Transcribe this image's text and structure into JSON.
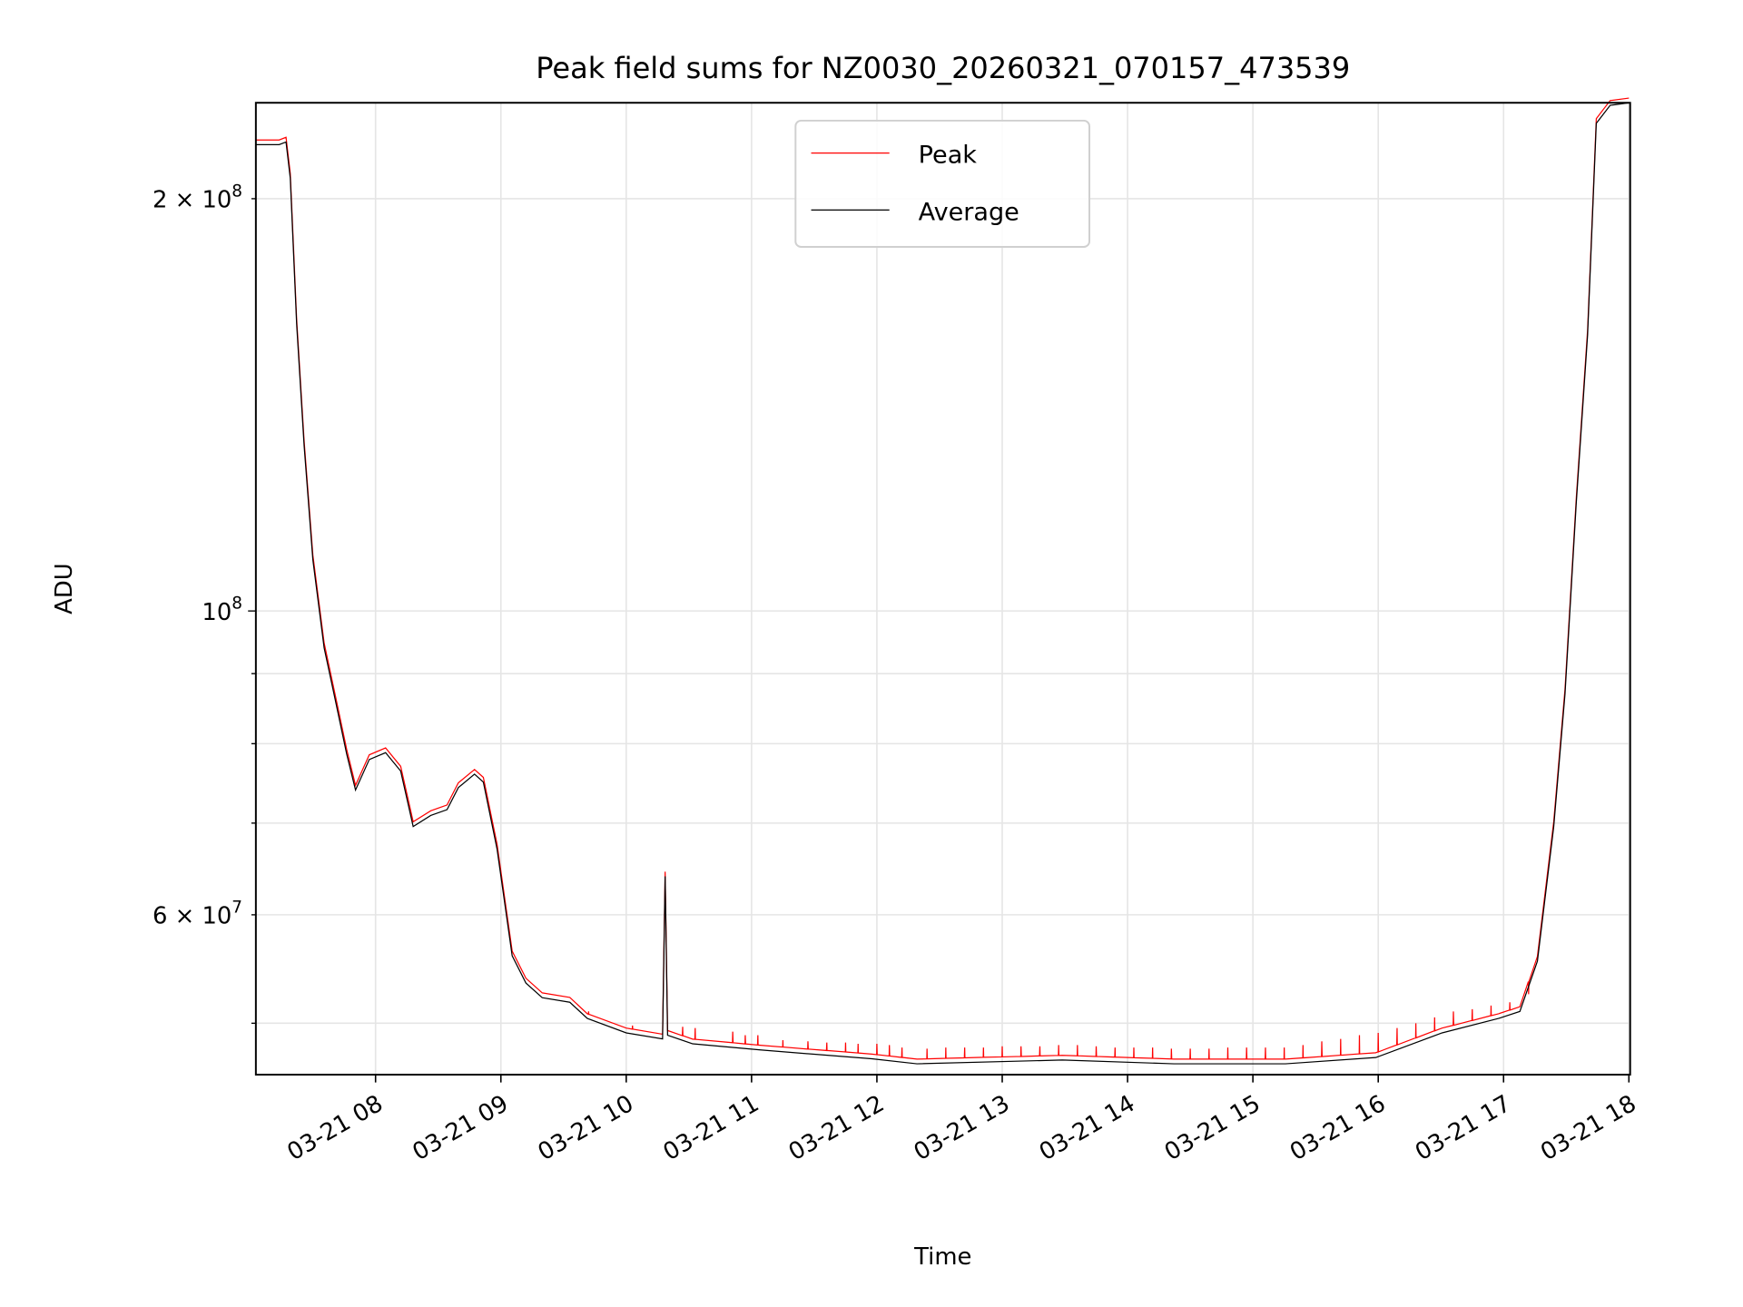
{
  "chart_data": {
    "type": "line",
    "title": "Peak field sums for NZ0030_20260321_070157_473539",
    "xlabel": "Time",
    "ylabel": "ADU",
    "yscale": "log",
    "ylim": [
      45860000,
      235000000
    ],
    "xlim_hours": [
      7.045,
      18.01
    ],
    "x_ticks": [
      {
        "hour": 8,
        "label": "03-21 08"
      },
      {
        "hour": 9,
        "label": "03-21 09"
      },
      {
        "hour": 10,
        "label": "03-21 10"
      },
      {
        "hour": 11,
        "label": "03-21 11"
      },
      {
        "hour": 12,
        "label": "03-21 12"
      },
      {
        "hour": 13,
        "label": "03-21 13"
      },
      {
        "hour": 14,
        "label": "03-21 14"
      },
      {
        "hour": 15,
        "label": "03-21 15"
      },
      {
        "hour": 16,
        "label": "03-21 16"
      },
      {
        "hour": 17,
        "label": "03-21 17"
      },
      {
        "hour": 18,
        "label": "03-21 18"
      }
    ],
    "y_major_ticks": [
      {
        "value": 100000000,
        "base": "10",
        "exp": "8"
      }
    ],
    "y_minor_ticks": [
      {
        "value": 200000000,
        "base": "2 × 10",
        "exp": "8"
      },
      {
        "value": 60000000,
        "base": "6 × 10",
        "exp": "7"
      }
    ],
    "y_minor_unlabeled": [
      50000000,
      70000000,
      80000000,
      90000000
    ],
    "grid": true,
    "legend": {
      "placement": "upper-center",
      "entries": [
        {
          "name": "Peak",
          "color": "#ff0000"
        },
        {
          "name": "Average",
          "color": "#000000"
        }
      ]
    },
    "series": [
      {
        "name": "Average",
        "color": "#000000",
        "points": [
          [
            7.045,
            219000000.0
          ],
          [
            7.23,
            219000000.0
          ],
          [
            7.286,
            220000000.0
          ],
          [
            7.32,
            207000000.0
          ],
          [
            7.37,
            162000000.0
          ],
          [
            7.43,
            132000000.0
          ],
          [
            7.5,
            109000000.0
          ],
          [
            7.59,
            94000000.0
          ],
          [
            7.68,
            86000000.0
          ],
          [
            7.77,
            78600000.0
          ],
          [
            7.84,
            74000000.0
          ],
          [
            7.95,
            77900000.0
          ],
          [
            8.08,
            78800000.0
          ],
          [
            8.2,
            76400000.0
          ],
          [
            8.3,
            69600000.0
          ],
          [
            8.44,
            70900000.0
          ],
          [
            8.57,
            71600000.0
          ],
          [
            8.66,
            74300000.0
          ],
          [
            8.79,
            76000000.0
          ],
          [
            8.86,
            75000000.0
          ],
          [
            8.97,
            67000000.0
          ],
          [
            9.09,
            56000000.0
          ],
          [
            9.2,
            53500000.0
          ],
          [
            9.33,
            52200000.0
          ],
          [
            9.55,
            51800000.0
          ],
          [
            9.69,
            50400000.0
          ],
          [
            10.0,
            49200000.0
          ],
          [
            10.29,
            48700000.0
          ],
          [
            10.31,
            64000000.0
          ],
          [
            10.33,
            49000000.0
          ],
          [
            10.53,
            48300000.0
          ],
          [
            11.07,
            47800000.0
          ],
          [
            11.96,
            47100000.0
          ],
          [
            12.32,
            46700000.0
          ],
          [
            13.48,
            47000000.0
          ],
          [
            14.37,
            46700000.0
          ],
          [
            15.26,
            46700000.0
          ],
          [
            15.98,
            47200000.0
          ],
          [
            16.51,
            49200000.0
          ],
          [
            16.96,
            50400000.0
          ],
          [
            17.13,
            51000000.0
          ],
          [
            17.27,
            55500000.0
          ],
          [
            17.4,
            69600000.0
          ],
          [
            17.49,
            87000000.0
          ],
          [
            17.58,
            120000000.0
          ],
          [
            17.67,
            159000000.0
          ],
          [
            17.74,
            227000000.0
          ],
          [
            17.85,
            234000000.0
          ],
          [
            18.0,
            235000000.0
          ]
        ]
      },
      {
        "name": "Peak",
        "color": "#ff0000",
        "offset_factor": 1.008,
        "spikes": [
          [
            9.7,
            51000000.0
          ],
          [
            10.05,
            49800000.0
          ],
          [
            10.45,
            49700000.0
          ],
          [
            10.55,
            49600000.0
          ],
          [
            10.85,
            49300000.0
          ],
          [
            10.95,
            49000000.0
          ],
          [
            11.05,
            49000000.0
          ],
          [
            11.25,
            48600000.0
          ],
          [
            11.45,
            48500000.0
          ],
          [
            11.6,
            48400000.0
          ],
          [
            11.75,
            48400000.0
          ],
          [
            11.85,
            48300000.0
          ],
          [
            12.0,
            48300000.0
          ],
          [
            12.1,
            48200000.0
          ],
          [
            12.2,
            48000000.0
          ],
          [
            12.4,
            47900000.0
          ],
          [
            12.55,
            48000000.0
          ],
          [
            12.7,
            48000000.0
          ],
          [
            12.85,
            48000000.0
          ],
          [
            13.0,
            48100000.0
          ],
          [
            13.15,
            48100000.0
          ],
          [
            13.3,
            48100000.0
          ],
          [
            13.45,
            48200000.0
          ],
          [
            13.6,
            48200000.0
          ],
          [
            13.75,
            48100000.0
          ],
          [
            13.9,
            48000000.0
          ],
          [
            14.05,
            48000000.0
          ],
          [
            14.2,
            48000000.0
          ],
          [
            14.35,
            47900000.0
          ],
          [
            14.5,
            47900000.0
          ],
          [
            14.65,
            47900000.0
          ],
          [
            14.8,
            48000000.0
          ],
          [
            14.95,
            48000000.0
          ],
          [
            15.1,
            48000000.0
          ],
          [
            15.25,
            48000000.0
          ],
          [
            15.4,
            48200000.0
          ],
          [
            15.55,
            48500000.0
          ],
          [
            15.7,
            48700000.0
          ],
          [
            15.85,
            49000000.0
          ],
          [
            16.0,
            49200000.0
          ],
          [
            16.15,
            49600000.0
          ],
          [
            16.3,
            50000000.0
          ],
          [
            16.45,
            50500000.0
          ],
          [
            16.6,
            51000000.0
          ],
          [
            16.75,
            51200000.0
          ],
          [
            16.9,
            51500000.0
          ],
          [
            17.05,
            51800000.0
          ],
          [
            17.2,
            52500000.0
          ]
        ]
      }
    ]
  }
}
